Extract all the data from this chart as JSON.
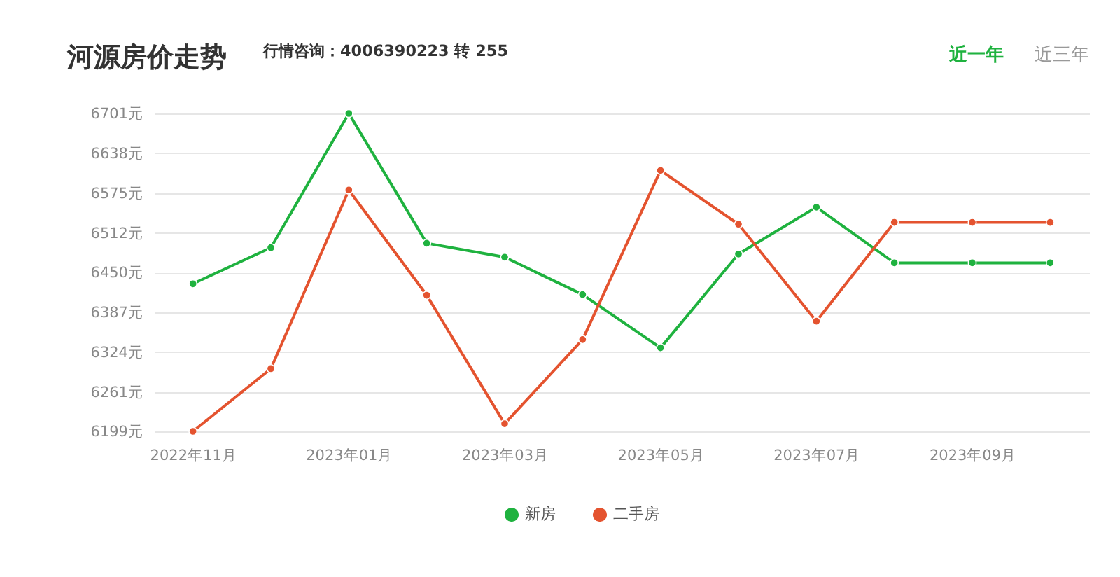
{
  "chart_data": {
    "type": "line",
    "title": "河源房价走势",
    "subtitle": "行情咨询：4006390223 转 255",
    "annotations": [
      "近一年",
      "近三年"
    ],
    "categories": [
      "2022年11月",
      null,
      "2023年01月",
      null,
      "2023年03月",
      null,
      "2023年05月",
      null,
      "2023年07月",
      null,
      "2023年09月",
      null
    ],
    "series": [
      {
        "name": "新房",
        "color": "#1fb23f",
        "values": [
          6432,
          6489,
          6701,
          6496,
          6474,
          6415,
          6331,
          6479,
          6553,
          6465,
          6465,
          6465
        ]
      },
      {
        "name": "二手房",
        "color": "#e4532f",
        "values": [
          6199,
          6298,
          6580,
          6414,
          6211,
          6344,
          6611,
          6526,
          6373,
          6529,
          6529,
          6529
        ]
      }
    ],
    "ylim": [
      6199,
      6701
    ],
    "yticks": [
      {
        "value": 6199,
        "label": "6199元"
      },
      {
        "value": 6261,
        "label": "6261元"
      },
      {
        "value": 6324,
        "label": "6324元"
      },
      {
        "value": 6387,
        "label": "6387元"
      },
      {
        "value": 6450,
        "label": "6450元"
      },
      {
        "value": 6512,
        "label": "6512元"
      },
      {
        "value": 6575,
        "label": "6575元"
      },
      {
        "value": 6638,
        "label": "6638元"
      },
      {
        "value": 6701,
        "label": "6701元"
      }
    ],
    "grid": "y",
    "legend": "bottom",
    "marker": "circle",
    "line_style": "solid"
  }
}
